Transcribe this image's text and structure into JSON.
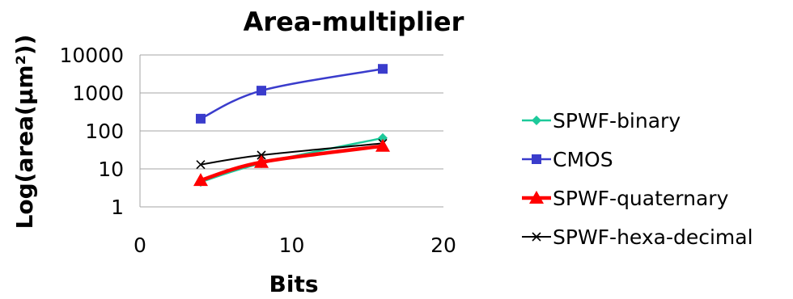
{
  "chart_data": {
    "type": "line",
    "title": "Area-multiplier",
    "xlabel": "Bits",
    "ylabel": "Log(area(µm²))",
    "xlim": [
      0,
      20
    ],
    "ylim": [
      1,
      10000
    ],
    "yscale": "log",
    "x_ticks": [
      "0",
      "10",
      "20"
    ],
    "y_ticks": [
      "1",
      "10",
      "100",
      "1000",
      "10000"
    ],
    "grid": "horizontal",
    "legend_position": "right",
    "series": [
      {
        "name": "SPWF-binary",
        "x": [
          4,
          8,
          16
        ],
        "values": [
          4.5,
          14,
          65
        ],
        "color": "#1dc99a",
        "marker": "diamond"
      },
      {
        "name": "CMOS",
        "x": [
          4,
          8,
          16
        ],
        "values": [
          210,
          1150,
          4300
        ],
        "color": "#3a3ccc",
        "marker": "square"
      },
      {
        "name": "SPWF-quaternary",
        "x": [
          4,
          8,
          16
        ],
        "values": [
          5,
          15,
          40
        ],
        "color": "#ff0000",
        "marker": "triangle"
      },
      {
        "name": "SPWF-hexa-decimal",
        "x": [
          4,
          8,
          16
        ],
        "values": [
          13,
          23,
          47
        ],
        "color": "#000000",
        "marker": "x"
      }
    ]
  }
}
